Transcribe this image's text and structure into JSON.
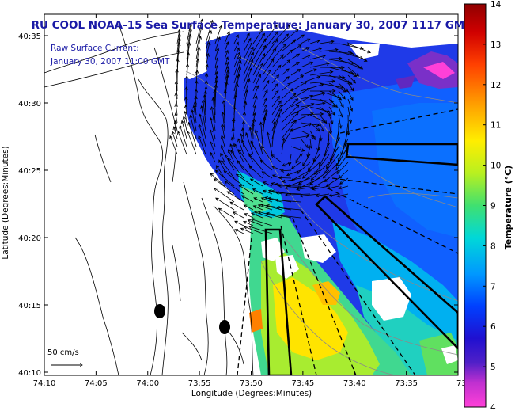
{
  "title": "RU COOL  NOAA-15  Sea Surface Temperature:  January 30, 2007 1117 GMT",
  "annotation": {
    "line1": "Raw Surface Current:",
    "line2": "January 30, 2007 11:00 GMT"
  },
  "scale_label": "50 cm/s",
  "map": {
    "xlabel": "Longitude (Degrees:Minutes)",
    "ylabel": "Latitude (Degrees:Minutes)",
    "x_ticks": [
      "74:10",
      "74:05",
      "74:00",
      "73:55",
      "73:50",
      "73:45",
      "73:40",
      "73:35",
      "73:3"
    ],
    "y_ticks": [
      "40:35",
      "40:30",
      "40:25",
      "40:20",
      "40:15",
      "40:10"
    ]
  },
  "colorbar": {
    "label": "Temperature (°C)",
    "ticks": [
      "14",
      "13",
      "12",
      "11",
      "10",
      "9",
      "8",
      "7",
      "6",
      "5",
      "4"
    ],
    "range": [
      4,
      14
    ],
    "colors": [
      "#ff40d8",
      "#9030c0",
      "#2010d0",
      "#0040ff",
      "#0098ff",
      "#00d8d8",
      "#40e070",
      "#b8f020",
      "#ffee00",
      "#ffa000",
      "#ff4000",
      "#d00000",
      "#900000"
    ]
  }
}
